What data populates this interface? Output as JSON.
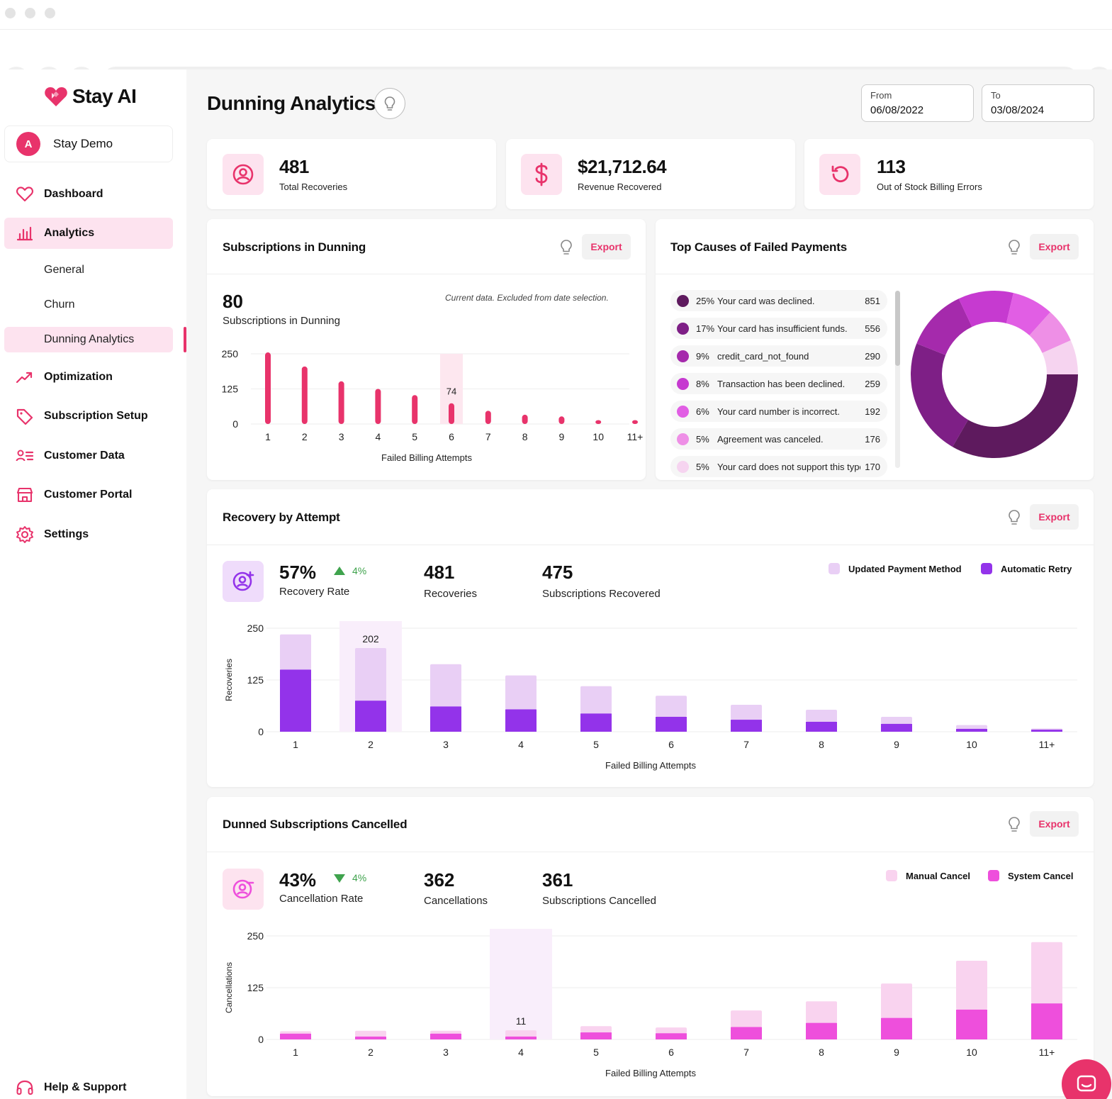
{
  "brand": {
    "name": "Stay AI"
  },
  "account": {
    "initial": "A",
    "name": "Stay Demo"
  },
  "nav": [
    {
      "label": "Dashboard",
      "icon": "heart-icon"
    },
    {
      "label": "Analytics",
      "icon": "bar-chart-icon",
      "active": true
    },
    {
      "label": "Optimization",
      "icon": "trend-up-icon"
    },
    {
      "label": "Subscription Setup",
      "icon": "tag-icon"
    },
    {
      "label": "Customer Data",
      "icon": "user-list-icon"
    },
    {
      "label": "Customer Portal",
      "icon": "store-icon"
    },
    {
      "label": "Settings",
      "icon": "gear-icon"
    }
  ],
  "analytics_sub": [
    "General",
    "Churn",
    "Dunning Analytics"
  ],
  "help": {
    "label": "Help & Support"
  },
  "page": {
    "title": "Dunning Analytics"
  },
  "date_range": {
    "from_label": "From",
    "from_value": "06/08/2022",
    "to_label": "To",
    "to_value": "03/08/2024"
  },
  "kpis": [
    {
      "value": "481",
      "label": "Total Recoveries",
      "icon": "user-circle-icon"
    },
    {
      "value": "$21,712.64",
      "label": "Revenue Recovered",
      "icon": "dollar-icon"
    },
    {
      "value": "113",
      "label": "Out of Stock Billing Errors",
      "icon": "refresh-icon"
    }
  ],
  "export_label": "Export",
  "subs_dunning": {
    "title": "Subscriptions in Dunning",
    "value": "80",
    "value_label": "Subscriptions in Dunning",
    "note": "Current data. Excluded from date selection.",
    "highlight_label": "74"
  },
  "failed_causes": {
    "title": "Top Causes of Failed Payments",
    "items": [
      {
        "pct": "25%",
        "name": "Your card was declined.",
        "count": "851",
        "color": "#5e1a5e"
      },
      {
        "pct": "17%",
        "name": "Your card has insufficient funds.",
        "count": "556",
        "color": "#7e1f86"
      },
      {
        "pct": "9%",
        "name": "credit_card_not_found",
        "count": "290",
        "color": "#a52aac"
      },
      {
        "pct": "8%",
        "name": "Transaction has been declined.",
        "count": "259",
        "color": "#c63ad0"
      },
      {
        "pct": "6%",
        "name": "Your card number is incorrect.",
        "count": "192",
        "color": "#e15ee4"
      },
      {
        "pct": "5%",
        "name": "Agreement was canceled.",
        "count": "176",
        "color": "#ee8fe6"
      },
      {
        "pct": "5%",
        "name": "Your card does not support this type of purchase.",
        "count": "170",
        "color": "#f6d4f0"
      }
    ]
  },
  "recovery": {
    "title": "Recovery by Attempt",
    "rate": "57%",
    "rate_label": "Recovery Rate",
    "delta": "4%",
    "recoveries": "481",
    "recoveries_label": "Recoveries",
    "subs": "475",
    "subs_label": "Subscriptions Recovered",
    "highlight_label": "202",
    "colors": {
      "updated": "#e9cff5",
      "retry": "#9333ea"
    }
  },
  "cancelled": {
    "title": "Dunned Subscriptions Cancelled",
    "rate": "43%",
    "rate_label": "Cancellation Rate",
    "delta": "4%",
    "cancellations": "362",
    "cancellations_label": "Cancellations",
    "subs": "361",
    "subs_label": "Subscriptions Cancelled",
    "highlight_label": "11",
    "colors": {
      "manual": "#f9d3ef",
      "system": "#ee4fdc"
    }
  },
  "chart_data": [
    {
      "type": "bar",
      "title": "Subscriptions in Dunning",
      "xlabel": "Failed Billing Attempts",
      "ylabel": "",
      "categories": [
        "1",
        "2",
        "3",
        "4",
        "5",
        "6",
        "7",
        "8",
        "9",
        "10",
        "11+"
      ],
      "values": [
        255,
        205,
        152,
        125,
        103,
        74,
        47,
        33,
        27,
        14,
        14
      ],
      "yticks": [
        "0",
        "125",
        "250"
      ],
      "ylim": [
        0,
        250
      ],
      "color": "#e8336b"
    },
    {
      "type": "pie",
      "title": "Top Causes of Failed Payments",
      "categories": [
        "Your card was declined.",
        "Your card has insufficient funds.",
        "credit_card_not_found",
        "Transaction has been declined.",
        "Your card number is incorrect.",
        "Agreement was canceled.",
        "Your card does not support this type of purchase."
      ],
      "values": [
        25,
        17,
        9,
        8,
        6,
        5,
        5
      ]
    },
    {
      "type": "bar",
      "stacked": true,
      "title": "Recovery by Attempt",
      "xlabel": "Failed Billing Attempts",
      "ylabel": "Recoveries",
      "categories": [
        "1",
        "2",
        "3",
        "4",
        "5",
        "6",
        "7",
        "8",
        "9",
        "10",
        "11+"
      ],
      "yticks": [
        "0",
        "125",
        "250"
      ],
      "ylim": [
        0,
        250
      ],
      "series": [
        {
          "name": "Automatic Retry",
          "values": [
            150,
            75,
            61,
            54,
            44,
            36,
            29,
            24,
            19,
            7,
            5
          ]
        },
        {
          "name": "Updated Payment Method",
          "values": [
            85,
            127,
            102,
            82,
            66,
            51,
            36,
            29,
            17,
            9,
            3
          ]
        }
      ]
    },
    {
      "type": "bar",
      "stacked": true,
      "title": "Dunned Subscriptions Cancelled",
      "xlabel": "Failed Billing Attempts",
      "ylabel": "Cancellations",
      "categories": [
        "1",
        "2",
        "3",
        "4",
        "5",
        "6",
        "7",
        "8",
        "9",
        "10",
        "11+"
      ],
      "yticks": [
        "0",
        "125",
        "250"
      ],
      "ylim": [
        0,
        250
      ],
      "series": [
        {
          "name": "System Cancel",
          "values": [
            14,
            7,
            14,
            7,
            17,
            15,
            30,
            40,
            52,
            72,
            87
          ]
        },
        {
          "name": "Manual Cancel",
          "values": [
            6,
            14,
            7,
            15,
            15,
            14,
            40,
            52,
            83,
            118,
            148
          ]
        }
      ]
    }
  ]
}
